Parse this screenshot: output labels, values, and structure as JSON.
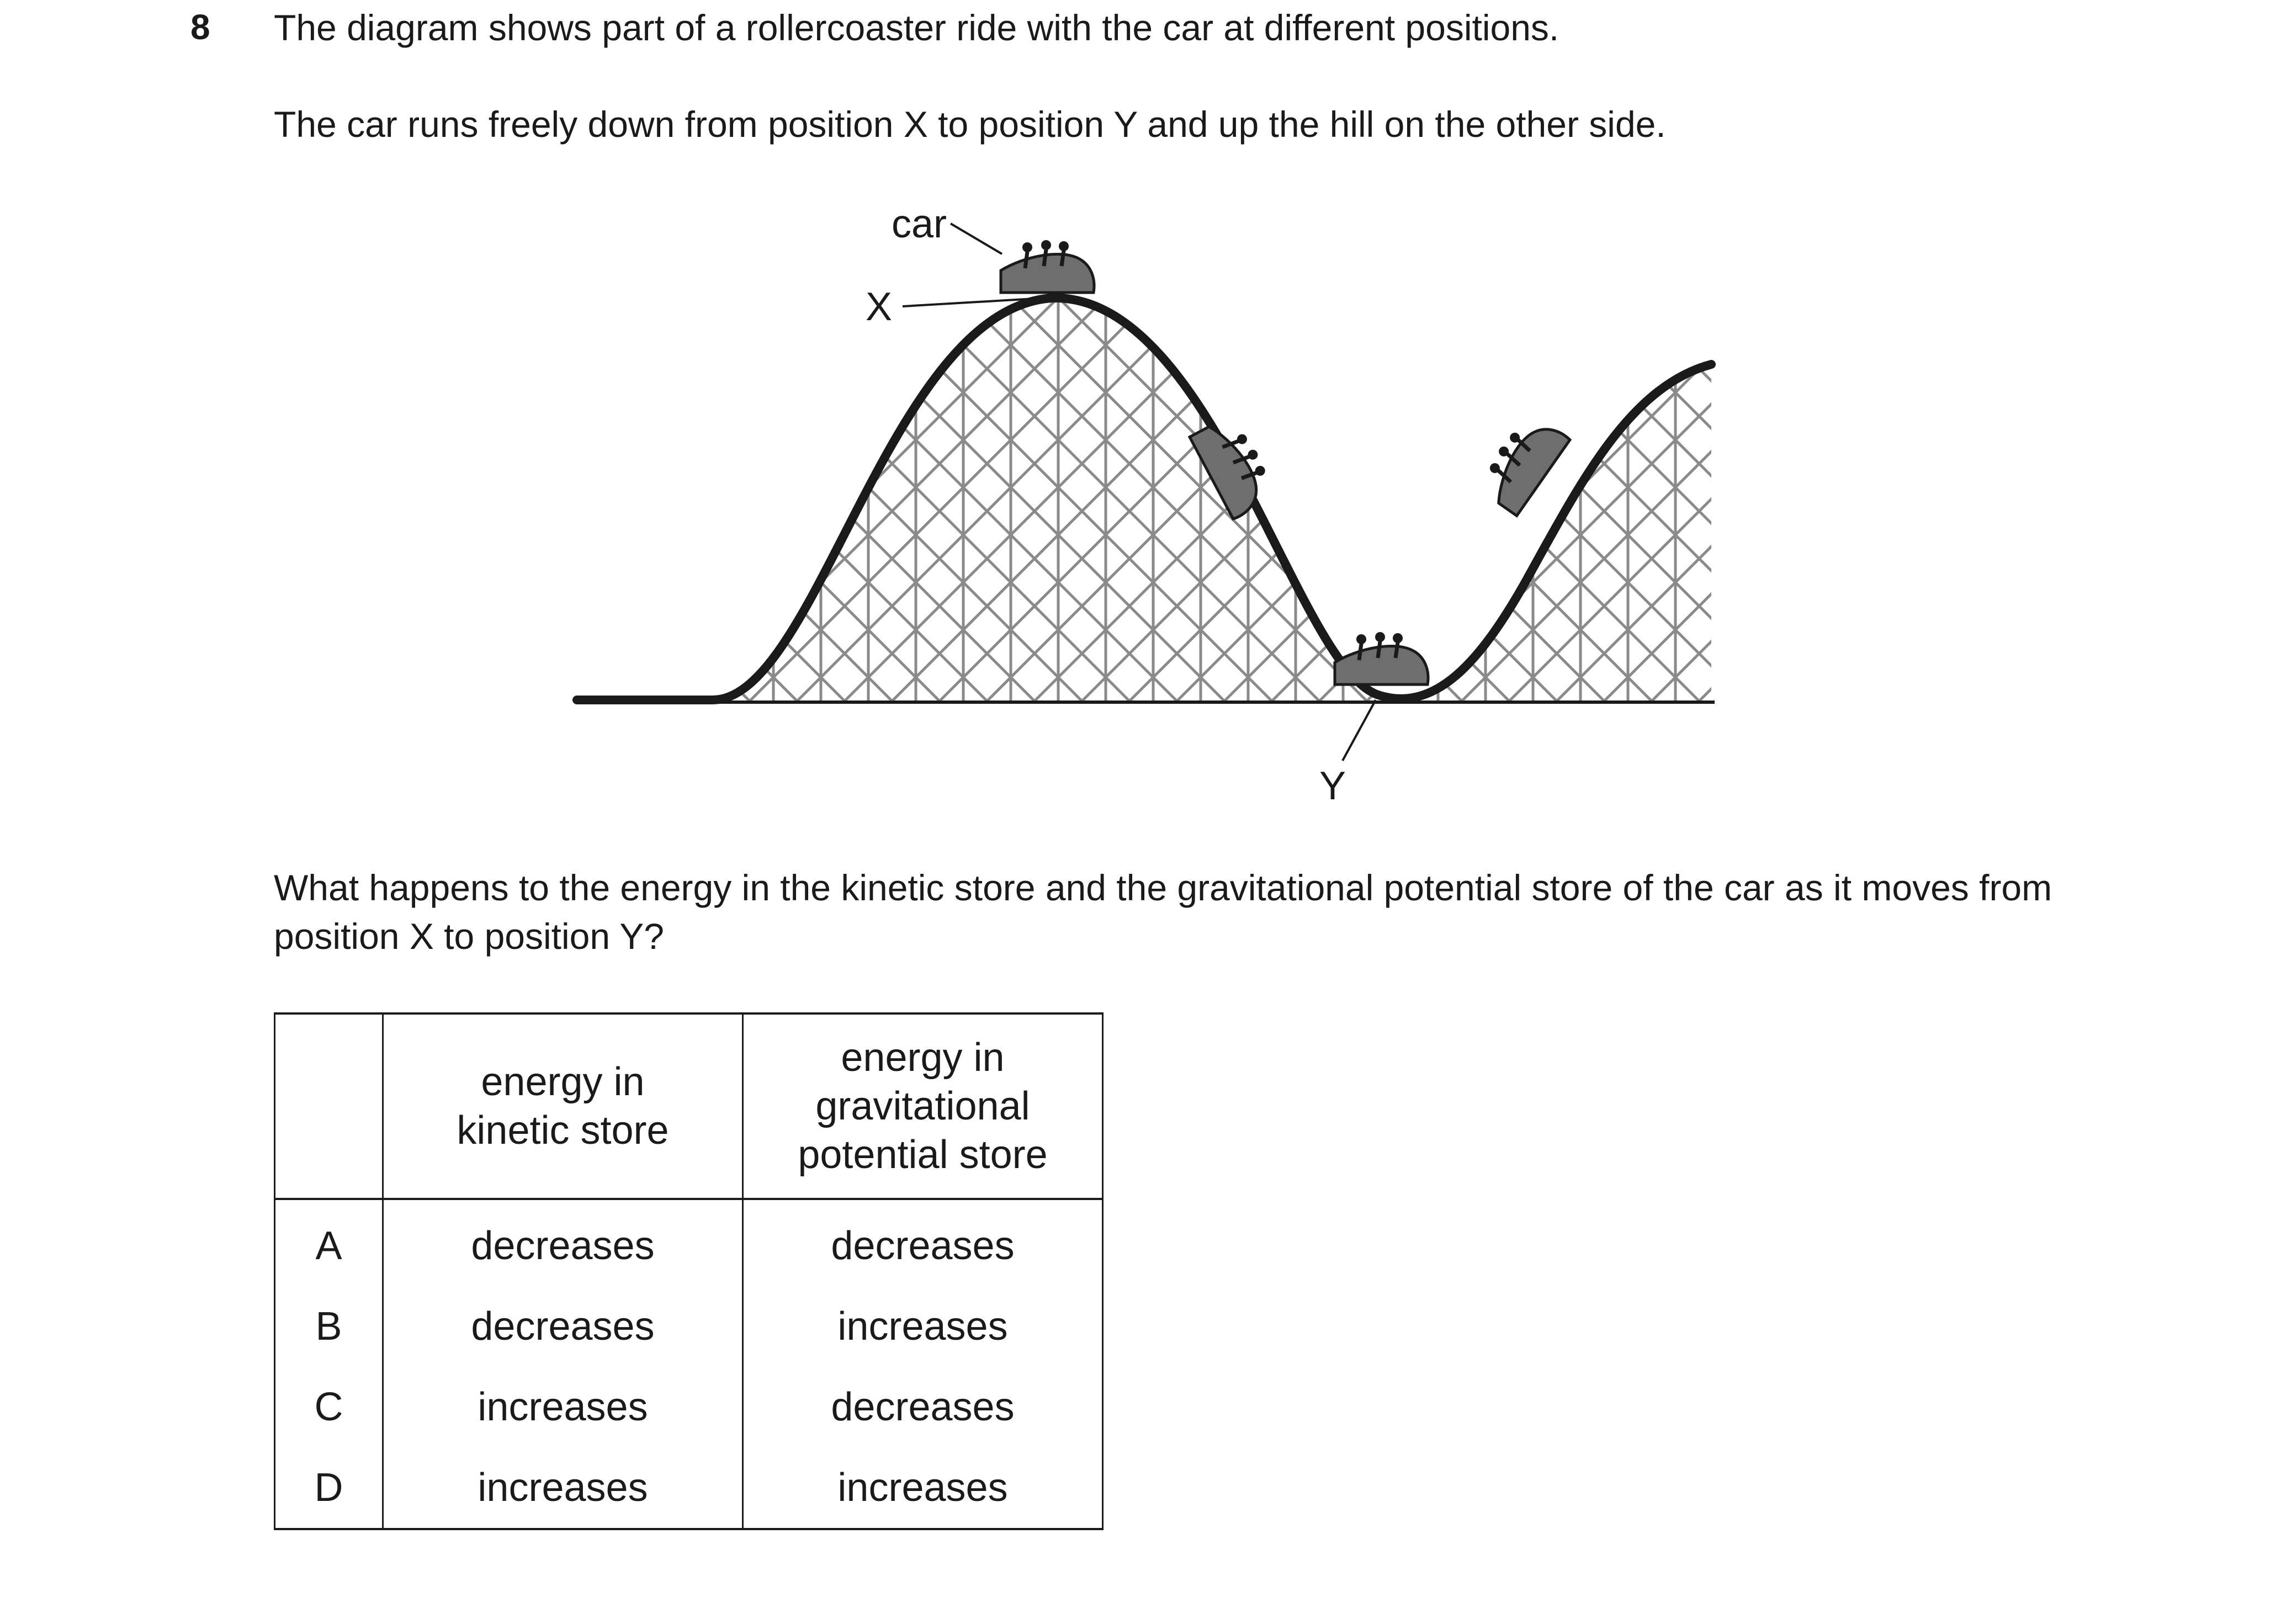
{
  "question": {
    "number": "8",
    "stem_line1": "The diagram shows part of a rollercoaster ride with the car at different positions.",
    "stem_line2": "The car runs freely down from position X to position Y and up the hill on the other side.",
    "prompt": "What happens to the energy in the kinetic store and the gravitational potential store of the car as it moves from position X to position Y?"
  },
  "diagram": {
    "car_label": "car",
    "x_label": "X",
    "y_label": "Y",
    "track_color": "#1a1a1a",
    "lattice_color": "#8a8a8a",
    "car_color": "#6e6e6e"
  },
  "table": {
    "header": {
      "kinetic_line1": "energy in",
      "kinetic_line2": "kinetic store",
      "gpe_line1": "energy in",
      "gpe_line2": "gravitational",
      "gpe_line3": "potential store"
    },
    "rows": [
      {
        "letter": "A",
        "kinetic": "decreases",
        "gpe": "decreases"
      },
      {
        "letter": "B",
        "kinetic": "decreases",
        "gpe": "increases"
      },
      {
        "letter": "C",
        "kinetic": "increases",
        "gpe": "decreases"
      },
      {
        "letter": "D",
        "kinetic": "increases",
        "gpe": "increases"
      }
    ]
  }
}
